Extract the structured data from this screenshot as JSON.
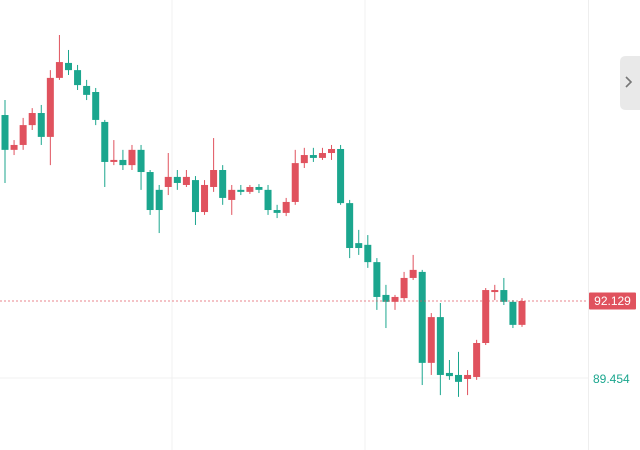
{
  "chart_data": {
    "type": "candlestick",
    "open": [
      98.59,
      97.38,
      97.55,
      98.24,
      98.66,
      97.83,
      99.88,
      100.4,
      100.15,
      99.6,
      99.39,
      98.35,
      96.96,
      97.03,
      96.85,
      97.38,
      96.61,
      95.99,
      96.09,
      96.44,
      96.16,
      96.33,
      95.22,
      96.09,
      96.68,
      95.64,
      95.99,
      95.92,
      96.09,
      95.99,
      95.29,
      95.19,
      95.57,
      96.92,
      97.2,
      97.1,
      97.27,
      97.41,
      95.53,
      94.14,
      94.08,
      93.48,
      92.34,
      92.1,
      92.23,
      92.93,
      93.14,
      89.98,
      91.57,
      89.63,
      89.56,
      89.42,
      89.49,
      90.67,
      92.44,
      92.51,
      92.1,
      91.3
    ],
    "high": [
      99.11,
      97.72,
      98.49,
      98.83,
      98.94,
      100.15,
      101.37,
      100.85,
      100.33,
      99.81,
      99.53,
      98.42,
      97.72,
      97.38,
      97.55,
      97.55,
      96.68,
      96.16,
      97.27,
      96.68,
      96.68,
      96.47,
      96.33,
      97.79,
      96.85,
      96.16,
      96.16,
      96.16,
      96.19,
      96.16,
      95.47,
      95.71,
      97.38,
      97.45,
      97.45,
      97.45,
      97.55,
      97.55,
      95.64,
      94.6,
      94.42,
      93.62,
      92.69,
      92.34,
      93.14,
      93.73,
      93.21,
      91.71,
      92.06,
      90.08,
      90.36,
      89.73,
      90.78,
      92.58,
      92.69,
      92.93,
      92.16,
      92.23
    ],
    "low": [
      96.23,
      97.2,
      97.38,
      98.07,
      97.55,
      96.85,
      99.81,
      99.98,
      99.46,
      99.11,
      98.24,
      96.09,
      96.85,
      96.68,
      96.68,
      95.99,
      95.12,
      94.49,
      95.81,
      95.99,
      96.09,
      94.77,
      95.12,
      95.92,
      95.47,
      95.12,
      95.81,
      95.85,
      95.88,
      95.12,
      95.01,
      95.08,
      95.47,
      96.75,
      96.96,
      97.03,
      97.03,
      95.47,
      93.62,
      93.73,
      93.28,
      91.82,
      91.19,
      91.82,
      92.1,
      92.86,
      89.21,
      89.56,
      88.86,
      89.39,
      88.8,
      88.86,
      89.39,
      90.6,
      92.16,
      91.99,
      91.19,
      91.23
    ],
    "close": [
      97.38,
      97.55,
      98.24,
      98.66,
      97.83,
      99.88,
      100.43,
      100.15,
      99.63,
      99.29,
      98.42,
      96.96,
      97.03,
      96.85,
      97.38,
      96.61,
      95.29,
      95.29,
      96.44,
      96.23,
      96.44,
      95.22,
      96.16,
      96.68,
      95.71,
      95.99,
      95.92,
      96.09,
      95.99,
      95.29,
      95.19,
      95.57,
      96.92,
      97.2,
      97.1,
      97.27,
      97.41,
      95.53,
      93.97,
      93.97,
      93.48,
      92.27,
      92.1,
      92.27,
      92.93,
      93.21,
      89.98,
      91.57,
      89.56,
      89.52,
      89.32,
      89.56,
      90.67,
      92.51,
      92.51,
      92.1,
      91.3,
      92.129
    ],
    "up_color": "#e0525e",
    "down_color": "#1ba68e",
    "last_price": 92.129,
    "ylim": [
      86.953,
      102.586
    ],
    "yticks": [
      89.454
    ],
    "grid": true
  }
}
